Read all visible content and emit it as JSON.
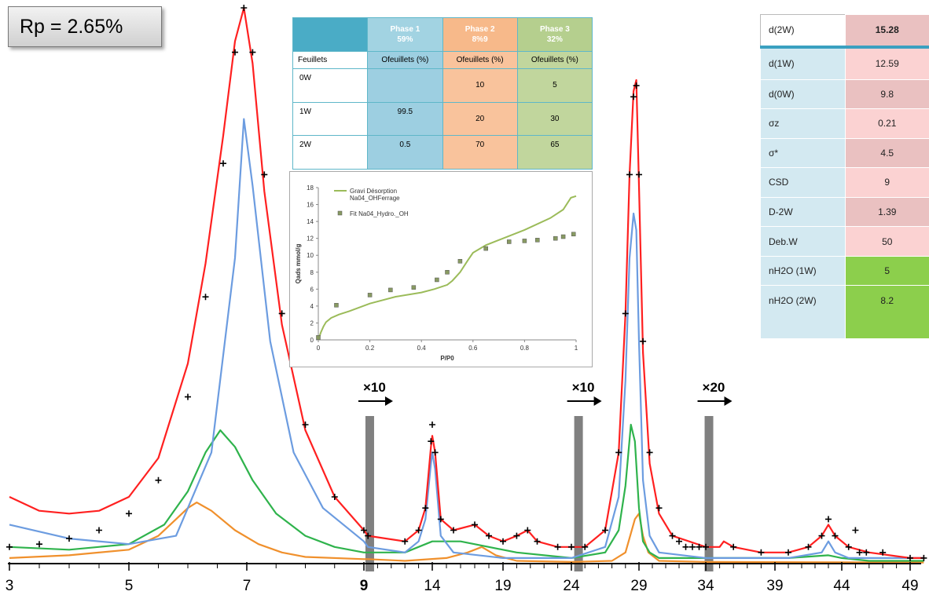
{
  "rp_label": "Rp = 2.65%",
  "phase_table": {
    "corner": "",
    "phases": [
      {
        "name": "Phase 1",
        "pct": "59%"
      },
      {
        "name": "Phase 2",
        "pct": "8%9"
      },
      {
        "name": "Phase 3",
        "pct": "32%"
      }
    ],
    "sub_label": "Feuillets",
    "sub_header": "Ofeuillets (%)",
    "rows": [
      {
        "label": "0W",
        "values": [
          "",
          "10",
          "5"
        ]
      },
      {
        "label": "1W",
        "values": [
          "99.5",
          "20",
          "30"
        ]
      },
      {
        "label": "2W",
        "values": [
          "0.5",
          "70",
          "65"
        ]
      }
    ]
  },
  "param_table": [
    {
      "name": "d(2W)",
      "value": "15.28"
    },
    {
      "name": "d(1W)",
      "value": "12.59"
    },
    {
      "name": "d(0W)",
      "value": "9.8"
    },
    {
      "name": "σz",
      "value": "0.21"
    },
    {
      "name": "σ*",
      "value": "4.5"
    },
    {
      "name": "CSD",
      "value": "9"
    },
    {
      "name": "D-2W",
      "value": "1.39"
    },
    {
      "name": "Deb.W",
      "value": "50"
    },
    {
      "name": "nH2O (1W)",
      "value": "5"
    },
    {
      "name": "nH2O (2W)",
      "value": "8.2"
    }
  ],
  "multipliers": [
    {
      "label": "×10",
      "after_x": 9
    },
    {
      "label": "×10",
      "after_x": 24
    },
    {
      "label": "×20",
      "after_x": 34
    }
  ],
  "colors": {
    "experimental": "#000000",
    "total": "#ff2020",
    "phase1": "#6c9ce0",
    "phase2": "#f0902c",
    "phase3": "#2fb34c",
    "inset_line": "#9bbb59",
    "inset_marker": "#889a62"
  },
  "chart_data": [
    {
      "type": "line",
      "title": "",
      "xlabel": "",
      "ylabel": "",
      "x_ticks": [
        3,
        5,
        7,
        9,
        14,
        19,
        24,
        29,
        34,
        39,
        44,
        49
      ],
      "x_ticks_bold": [
        3,
        5,
        7,
        9,
        14,
        19,
        24,
        29,
        34,
        39,
        44,
        49
      ],
      "axis_breaks": [
        9.4,
        24.5,
        34.2
      ],
      "series": [
        {
          "name": "",
          "style": "markers-plus",
          "color": "#000000",
          "x": [
            3,
            3.5,
            4,
            4.5,
            5,
            5.5,
            6,
            6.3,
            6.6,
            6.8,
            6.95,
            7.1,
            7.3,
            7.6,
            8,
            8.5,
            9,
            9.3,
            12,
            13,
            13.5,
            13.9,
            14,
            14.2,
            14.6,
            15.5,
            17,
            18,
            19,
            20,
            20.8,
            21.5,
            23,
            24,
            25,
            26.5,
            27.5,
            28,
            28.3,
            28.6,
            28.8,
            29,
            29.3,
            29.8,
            30.5,
            31.5,
            32,
            32.5,
            33,
            33.5,
            34,
            36,
            38,
            40,
            41.5,
            42.5,
            43,
            43.5,
            44.5,
            45,
            45.3,
            45.8,
            47,
            49,
            50
          ],
          "y": [
            0.03,
            0.035,
            0.045,
            0.06,
            0.09,
            0.15,
            0.3,
            0.48,
            0.72,
            0.92,
            1.0,
            0.92,
            0.7,
            0.45,
            0.25,
            0.12,
            0.06,
            0.05,
            0.04,
            0.06,
            0.1,
            0.22,
            0.25,
            0.2,
            0.08,
            0.06,
            0.07,
            0.05,
            0.04,
            0.05,
            0.06,
            0.04,
            0.03,
            0.03,
            0.03,
            0.06,
            0.2,
            0.45,
            0.7,
            0.84,
            0.86,
            0.7,
            0.4,
            0.2,
            0.1,
            0.05,
            0.04,
            0.03,
            0.03,
            0.03,
            0.03,
            0.03,
            0.02,
            0.02,
            0.03,
            0.05,
            0.08,
            0.05,
            0.03,
            0.06,
            0.02,
            0.02,
            0.02,
            0.01,
            0.01
          ]
        },
        {
          "name": "",
          "style": "line",
          "color": "#ff2020",
          "x": [
            3,
            3.5,
            4,
            4.5,
            5,
            5.5,
            6,
            6.3,
            6.6,
            6.8,
            6.95,
            7.1,
            7.3,
            7.6,
            8,
            8.5,
            9,
            9.3,
            12,
            13,
            13.5,
            13.9,
            14,
            14.2,
            14.6,
            15.5,
            17,
            18,
            19,
            20,
            20.8,
            21.5,
            23,
            24,
            25,
            26.5,
            27.5,
            28,
            28.3,
            28.6,
            28.8,
            29,
            29.3,
            29.8,
            30.5,
            31.5,
            34,
            35,
            35.3,
            36,
            38,
            40,
            41.5,
            42.5,
            43,
            43.5,
            44.5,
            46,
            49,
            50
          ],
          "y": [
            0.12,
            0.095,
            0.09,
            0.095,
            0.12,
            0.19,
            0.36,
            0.54,
            0.77,
            0.94,
            1.0,
            0.9,
            0.67,
            0.43,
            0.24,
            0.12,
            0.06,
            0.05,
            0.04,
            0.06,
            0.1,
            0.21,
            0.23,
            0.2,
            0.08,
            0.06,
            0.07,
            0.05,
            0.04,
            0.05,
            0.06,
            0.04,
            0.03,
            0.03,
            0.03,
            0.06,
            0.2,
            0.45,
            0.7,
            0.85,
            0.87,
            0.68,
            0.38,
            0.18,
            0.09,
            0.05,
            0.03,
            0.03,
            0.04,
            0.03,
            0.02,
            0.02,
            0.03,
            0.05,
            0.07,
            0.05,
            0.03,
            0.02,
            0.01,
            0.01
          ]
        },
        {
          "name": "",
          "style": "line",
          "color": "#6c9ce0",
          "x": [
            3,
            4,
            5,
            5.8,
            6.4,
            6.8,
            6.95,
            7.1,
            7.4,
            7.8,
            8.3,
            9,
            9.3,
            12,
            13,
            13.5,
            13.9,
            14,
            14.2,
            14.6,
            15.5,
            19,
            24,
            26.5,
            27.5,
            28,
            28.3,
            28.6,
            28.8,
            29,
            29.3,
            29.8,
            30.5,
            34,
            40,
            42.5,
            43,
            43.5,
            44.5,
            50
          ],
          "y": [
            0.07,
            0.045,
            0.035,
            0.05,
            0.2,
            0.55,
            0.8,
            0.68,
            0.4,
            0.2,
            0.1,
            0.04,
            0.03,
            0.02,
            0.04,
            0.08,
            0.18,
            0.2,
            0.17,
            0.05,
            0.02,
            0.01,
            0.01,
            0.03,
            0.12,
            0.33,
            0.55,
            0.63,
            0.6,
            0.4,
            0.15,
            0.05,
            0.02,
            0.01,
            0.01,
            0.02,
            0.04,
            0.02,
            0.01,
            0.01
          ]
        },
        {
          "name": "",
          "style": "line",
          "color": "#2fb34c",
          "x": [
            3,
            4,
            5,
            5.6,
            6,
            6.3,
            6.55,
            6.8,
            7.1,
            7.5,
            8,
            8.5,
            9,
            9.3,
            12,
            14,
            16,
            18,
            20,
            24,
            26.5,
            27.5,
            28,
            28.4,
            28.7,
            29,
            29.3,
            29.8,
            30.5,
            34,
            40,
            43,
            44,
            46,
            50
          ],
          "y": [
            0.03,
            0.025,
            0.035,
            0.07,
            0.13,
            0.2,
            0.24,
            0.21,
            0.15,
            0.09,
            0.05,
            0.03,
            0.02,
            0.02,
            0.02,
            0.04,
            0.04,
            0.03,
            0.02,
            0.01,
            0.02,
            0.06,
            0.14,
            0.25,
            0.22,
            0.1,
            0.04,
            0.02,
            0.01,
            0.01,
            0.01,
            0.015,
            0.01,
            0.005,
            0.005
          ]
        },
        {
          "name": "",
          "style": "line",
          "color": "#f0902c",
          "x": [
            3,
            4,
            5,
            5.5,
            5.8,
            6,
            6.15,
            6.4,
            6.8,
            7.2,
            7.6,
            8,
            9,
            9.3,
            12,
            15,
            16.5,
            17.5,
            18.5,
            20,
            24,
            27,
            28,
            28.7,
            29,
            29.3,
            29.7,
            30.5,
            34,
            50
          ],
          "y": [
            0.01,
            0.015,
            0.025,
            0.05,
            0.08,
            0.1,
            0.11,
            0.095,
            0.06,
            0.035,
            0.02,
            0.012,
            0.008,
            0.008,
            0.005,
            0.01,
            0.02,
            0.03,
            0.015,
            0.005,
            0.003,
            0.005,
            0.02,
            0.08,
            0.09,
            0.05,
            0.02,
            0.005,
            0.003,
            0.002
          ]
        }
      ]
    },
    {
      "type": "scatter",
      "title": "",
      "xlabel": "P/P0",
      "ylabel": "Qads mmol/g",
      "xlim": [
        0,
        1
      ],
      "ylim": [
        0,
        18
      ],
      "x_ticks": [
        0,
        0.2,
        0.4,
        0.6,
        0.8,
        1
      ],
      "y_ticks": [
        0,
        2,
        4,
        6,
        8,
        10,
        12,
        14,
        16,
        18
      ],
      "legend": [
        "Gravi Désorption Na04_OHFerrage",
        "Fit Na04_Hydro._OH"
      ],
      "series": [
        {
          "name": "Gravi Désorption Na04_OHFerrage",
          "style": "line",
          "color": "#9bbb59",
          "x": [
            0,
            0.01,
            0.02,
            0.03,
            0.05,
            0.08,
            0.12,
            0.2,
            0.3,
            0.4,
            0.45,
            0.5,
            0.52,
            0.55,
            0.58,
            0.6,
            0.65,
            0.7,
            0.8,
            0.9,
            0.95,
            0.98,
            1.0
          ],
          "y": [
            0,
            0.9,
            1.6,
            2.1,
            2.6,
            3.0,
            3.4,
            4.3,
            5.1,
            5.6,
            6.0,
            6.5,
            7.0,
            8.0,
            9.4,
            10.3,
            11.2,
            11.8,
            13.0,
            14.4,
            15.4,
            16.8,
            17.0
          ]
        },
        {
          "name": "Fit Na04_Hydro._OH",
          "style": "markers",
          "color": "#889a62",
          "x": [
            0,
            0.07,
            0.2,
            0.28,
            0.37,
            0.46,
            0.5,
            0.55,
            0.65,
            0.74,
            0.8,
            0.85,
            0.92,
            0.95,
            0.99
          ],
          "y": [
            0.3,
            4.1,
            5.3,
            5.9,
            6.2,
            7.1,
            8.0,
            9.3,
            10.8,
            11.6,
            11.7,
            11.8,
            12.0,
            12.2,
            12.5
          ]
        }
      ]
    }
  ]
}
